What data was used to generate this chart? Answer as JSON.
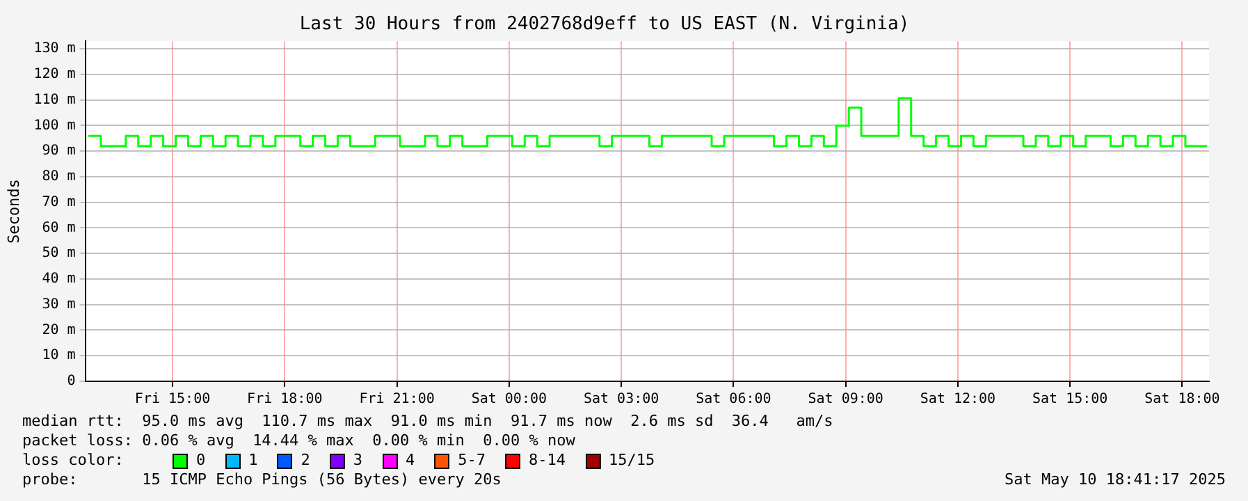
{
  "chart_data": {
    "type": "step",
    "title": "Last 30 Hours from 2402768d9eff to US EAST (N. Virginia)",
    "ylabel": "Seconds",
    "x": [
      "2025-05-09T12:45",
      "2025-05-09T13:05",
      "2025-05-09T13:25",
      "2025-05-09T13:45",
      "2025-05-09T14:05",
      "2025-05-09T14:25",
      "2025-05-09T14:45",
      "2025-05-09T15:05",
      "2025-05-09T15:25",
      "2025-05-09T15:45",
      "2025-05-09T16:05",
      "2025-05-09T16:25",
      "2025-05-09T16:45",
      "2025-05-09T17:05",
      "2025-05-09T17:25",
      "2025-05-09T17:45",
      "2025-05-09T18:05",
      "2025-05-09T18:25",
      "2025-05-09T18:45",
      "2025-05-09T19:05",
      "2025-05-09T19:25",
      "2025-05-09T19:45",
      "2025-05-09T20:05",
      "2025-05-09T20:25",
      "2025-05-09T20:45",
      "2025-05-09T21:05",
      "2025-05-09T21:25",
      "2025-05-09T21:45",
      "2025-05-09T22:05",
      "2025-05-09T22:25",
      "2025-05-09T22:45",
      "2025-05-09T23:05",
      "2025-05-09T23:25",
      "2025-05-09T23:45",
      "2025-05-10T00:05",
      "2025-05-10T00:25",
      "2025-05-10T00:45",
      "2025-05-10T01:05",
      "2025-05-10T01:25",
      "2025-05-10T01:45",
      "2025-05-10T02:05",
      "2025-05-10T02:25",
      "2025-05-10T02:45",
      "2025-05-10T03:05",
      "2025-05-10T03:25",
      "2025-05-10T03:45",
      "2025-05-10T04:05",
      "2025-05-10T04:25",
      "2025-05-10T04:45",
      "2025-05-10T05:05",
      "2025-05-10T05:25",
      "2025-05-10T05:45",
      "2025-05-10T06:05",
      "2025-05-10T06:25",
      "2025-05-10T06:45",
      "2025-05-10T07:05",
      "2025-05-10T07:25",
      "2025-05-10T07:45",
      "2025-05-10T08:05",
      "2025-05-10T08:25",
      "2025-05-10T08:45",
      "2025-05-10T09:05",
      "2025-05-10T09:25",
      "2025-05-10T09:45",
      "2025-05-10T10:05",
      "2025-05-10T10:25",
      "2025-05-10T10:45",
      "2025-05-10T11:05",
      "2025-05-10T11:25",
      "2025-05-10T11:45",
      "2025-05-10T12:05",
      "2025-05-10T12:25",
      "2025-05-10T12:45",
      "2025-05-10T13:05",
      "2025-05-10T13:25",
      "2025-05-10T13:45",
      "2025-05-10T14:05",
      "2025-05-10T14:25",
      "2025-05-10T14:45",
      "2025-05-10T15:05",
      "2025-05-10T15:25",
      "2025-05-10T15:45",
      "2025-05-10T16:05",
      "2025-05-10T16:25",
      "2025-05-10T16:45",
      "2025-05-10T17:05",
      "2025-05-10T17:25",
      "2025-05-10T17:45",
      "2025-05-10T18:05",
      "2025-05-10T18:25",
      "2025-05-10T18:40"
    ],
    "series": [
      {
        "name": "0",
        "color": "#00ff00",
        "values": [
          96,
          92,
          92,
          96,
          92,
          96,
          92,
          96,
          92,
          96,
          92,
          96,
          92,
          96,
          92,
          96,
          96,
          92,
          96,
          92,
          96,
          92,
          92,
          96,
          96,
          92,
          92,
          96,
          92,
          96,
          92,
          92,
          96,
          96,
          92,
          96,
          92,
          96,
          96,
          96,
          96,
          92,
          96,
          96,
          96,
          92,
          96,
          96,
          96,
          96,
          92,
          96,
          96,
          96,
          96,
          92,
          96,
          92,
          96,
          92,
          100,
          107,
          96,
          96,
          96,
          110.7,
          96,
          92,
          96,
          92,
          96,
          92,
          96,
          96,
          96,
          92,
          96,
          92,
          96,
          92,
          96,
          96,
          92,
          96,
          92,
          96,
          92,
          96,
          92,
          92,
          92
        ]
      },
      {
        "name": "1",
        "color": "#00b8ff",
        "values": [
          null,
          null,
          null,
          null,
          null,
          null,
          null,
          null,
          null,
          null,
          null,
          null,
          null,
          null,
          null,
          null,
          null,
          null,
          null,
          null,
          null,
          null,
          null,
          null,
          null,
          null,
          null,
          null,
          null,
          null,
          null,
          null,
          null,
          null,
          null,
          null,
          null,
          null,
          null,
          null,
          null,
          null,
          null,
          null,
          null,
          null,
          null,
          null,
          null,
          null,
          null,
          null,
          null,
          null,
          null,
          null,
          null,
          null,
          null,
          null,
          null,
          null,
          null,
          null,
          null,
          null,
          null,
          null,
          null,
          null,
          null,
          null,
          null,
          null,
          null,
          null,
          null,
          null,
          null,
          null,
          null,
          null,
          null,
          null,
          null,
          null,
          null,
          null,
          null,
          null,
          null
        ]
      },
      {
        "name": "2",
        "color": "#0059ff",
        "values": [
          null,
          null,
          null,
          null,
          null,
          null,
          null,
          null,
          null,
          null,
          null,
          null,
          null,
          null,
          null,
          null,
          null,
          null,
          null,
          null,
          null,
          null,
          null,
          null,
          null,
          null,
          null,
          null,
          null,
          null,
          null,
          null,
          null,
          null,
          null,
          null,
          null,
          null,
          null,
          null,
          null,
          null,
          null,
          null,
          null,
          null,
          null,
          null,
          null,
          null,
          null,
          null,
          null,
          null,
          null,
          null,
          null,
          null,
          null,
          null,
          null,
          null,
          null,
          null,
          null,
          null,
          null,
          null,
          null,
          null,
          null,
          null,
          null,
          null,
          null,
          null,
          null,
          null,
          null,
          null,
          null,
          null,
          null,
          null,
          null,
          null,
          null,
          null,
          null,
          null,
          null
        ]
      },
      {
        "name": "3",
        "color": "#7e00ff",
        "values": [
          null,
          null,
          null,
          null,
          null,
          null,
          null,
          null,
          null,
          null,
          null,
          null,
          null,
          null,
          null,
          null,
          null,
          null,
          null,
          null,
          null,
          null,
          null,
          null,
          null,
          null,
          null,
          null,
          null,
          null,
          null,
          null,
          null,
          null,
          null,
          null,
          null,
          null,
          null,
          null,
          null,
          null,
          null,
          null,
          null,
          null,
          null,
          null,
          null,
          null,
          null,
          null,
          null,
          null,
          null,
          null,
          null,
          null,
          null,
          null,
          null,
          null,
          null,
          null,
          null,
          null,
          null,
          null,
          null,
          null,
          null,
          null,
          null,
          null,
          null,
          null,
          null,
          null,
          null,
          null,
          null,
          null,
          null,
          null,
          null,
          null,
          null,
          null,
          null,
          null,
          null
        ]
      },
      {
        "name": "4",
        "color": "#ff00ff",
        "values": [
          null,
          null,
          null,
          null,
          null,
          null,
          null,
          null,
          null,
          null,
          null,
          null,
          null,
          null,
          null,
          null,
          null,
          null,
          null,
          null,
          null,
          null,
          null,
          null,
          null,
          null,
          null,
          null,
          null,
          null,
          null,
          null,
          null,
          null,
          null,
          null,
          null,
          null,
          null,
          null,
          null,
          null,
          null,
          null,
          null,
          null,
          null,
          null,
          null,
          null,
          null,
          null,
          null,
          null,
          null,
          null,
          null,
          null,
          null,
          null,
          null,
          null,
          null,
          null,
          null,
          null,
          null,
          null,
          null,
          null,
          null,
          null,
          null,
          null,
          null,
          null,
          null,
          null,
          null,
          null,
          null,
          null,
          null,
          null,
          null,
          null,
          null,
          null,
          null,
          null,
          null
        ]
      },
      {
        "name": "5-7",
        "color": "#ff5500",
        "values": [
          null,
          null,
          null,
          null,
          null,
          null,
          null,
          null,
          null,
          null,
          null,
          null,
          null,
          null,
          null,
          null,
          null,
          null,
          null,
          null,
          null,
          null,
          null,
          null,
          null,
          null,
          null,
          null,
          null,
          null,
          null,
          null,
          null,
          null,
          null,
          null,
          null,
          null,
          null,
          null,
          null,
          null,
          null,
          null,
          null,
          null,
          null,
          null,
          null,
          null,
          null,
          null,
          null,
          null,
          null,
          null,
          null,
          null,
          null,
          null,
          null,
          null,
          null,
          null,
          null,
          null,
          null,
          null,
          null,
          null,
          null,
          null,
          null,
          null,
          null,
          null,
          null,
          null,
          null,
          null,
          null,
          null,
          null,
          null,
          null,
          null,
          null,
          null,
          null,
          null,
          null
        ]
      },
      {
        "name": "8-14",
        "color": "#ff0000",
        "values": [
          null,
          null,
          null,
          null,
          null,
          null,
          null,
          null,
          null,
          null,
          null,
          null,
          null,
          null,
          null,
          null,
          null,
          null,
          null,
          null,
          null,
          null,
          null,
          null,
          null,
          null,
          null,
          null,
          null,
          null,
          null,
          null,
          null,
          null,
          null,
          null,
          null,
          null,
          null,
          null,
          null,
          null,
          null,
          null,
          null,
          null,
          null,
          null,
          null,
          null,
          null,
          null,
          null,
          null,
          null,
          null,
          null,
          null,
          null,
          null,
          null,
          null,
          null,
          null,
          null,
          null,
          null,
          null,
          null,
          null,
          null,
          null,
          null,
          null,
          null,
          null,
          null,
          null,
          null,
          null,
          null,
          null,
          null,
          null,
          null,
          null,
          null,
          null,
          null,
          null,
          null
        ]
      },
      {
        "name": "15/15",
        "color": "#a10000",
        "values": [
          null,
          null,
          null,
          null,
          null,
          null,
          null,
          null,
          null,
          null,
          null,
          null,
          null,
          null,
          null,
          null,
          null,
          null,
          null,
          null,
          null,
          null,
          null,
          null,
          null,
          null,
          null,
          null,
          null,
          null,
          null,
          null,
          null,
          null,
          null,
          null,
          null,
          null,
          null,
          null,
          null,
          null,
          null,
          null,
          null,
          null,
          null,
          null,
          null,
          null,
          null,
          null,
          null,
          null,
          null,
          null,
          null,
          null,
          null,
          null,
          null,
          null,
          null,
          null,
          null,
          null,
          null,
          null,
          null,
          null,
          null,
          null,
          null,
          null,
          null,
          null,
          null,
          null,
          null,
          null,
          null,
          null,
          null,
          null,
          null,
          null,
          null,
          null,
          null,
          null,
          null
        ]
      }
    ],
    "legend": "bottom",
    "legend_title": "loss color:",
    "grid": true,
    "xlim": [
      "2025-05-09T12:40",
      "2025-05-10T18:43"
    ],
    "xticks": [
      {
        "value": "2025-05-09T15:00",
        "label": "Fri 15:00"
      },
      {
        "value": "2025-05-09T18:00",
        "label": "Fri 18:00"
      },
      {
        "value": "2025-05-09T21:00",
        "label": "Fri 21:00"
      },
      {
        "value": "2025-05-10T00:00",
        "label": "Sat 00:00"
      },
      {
        "value": "2025-05-10T03:00",
        "label": "Sat 03:00"
      },
      {
        "value": "2025-05-10T06:00",
        "label": "Sat 06:00"
      },
      {
        "value": "2025-05-10T09:00",
        "label": "Sat 09:00"
      },
      {
        "value": "2025-05-10T12:00",
        "label": "Sat 12:00"
      },
      {
        "value": "2025-05-10T15:00",
        "label": "Sat 15:00"
      },
      {
        "value": "2025-05-10T18:00",
        "label": "Sat 18:00"
      }
    ],
    "ylim": [
      0,
      133
    ],
    "yticks": [
      {
        "value": 0,
        "label": "0"
      },
      {
        "value": 10,
        "label": "10 m"
      },
      {
        "value": 20,
        "label": "20 m"
      },
      {
        "value": 30,
        "label": "30 m"
      },
      {
        "value": 40,
        "label": "40 m"
      },
      {
        "value": 50,
        "label": "50 m"
      },
      {
        "value": 60,
        "label": "60 m"
      },
      {
        "value": 70,
        "label": "70 m"
      },
      {
        "value": 80,
        "label": "80 m"
      },
      {
        "value": 90,
        "label": "90 m"
      },
      {
        "value": 100,
        "label": "100 m"
      },
      {
        "value": 110,
        "label": "110 m"
      },
      {
        "value": 120,
        "label": "120 m"
      },
      {
        "value": 130,
        "label": "130 m"
      }
    ],
    "annotations": [
      "median rtt:  95.0 ms avg  110.7 ms max  91.0 ms min  91.7 ms now  2.6 ms sd  36.4   am/s",
      "packet loss: 0.06 % avg  14.44 % max  0.00 % min  0.00 % now",
      "probe:       15 ICMP Echo Pings (56 Bytes) every 20s",
      "Sat May 10 18:41:17 2025"
    ]
  }
}
